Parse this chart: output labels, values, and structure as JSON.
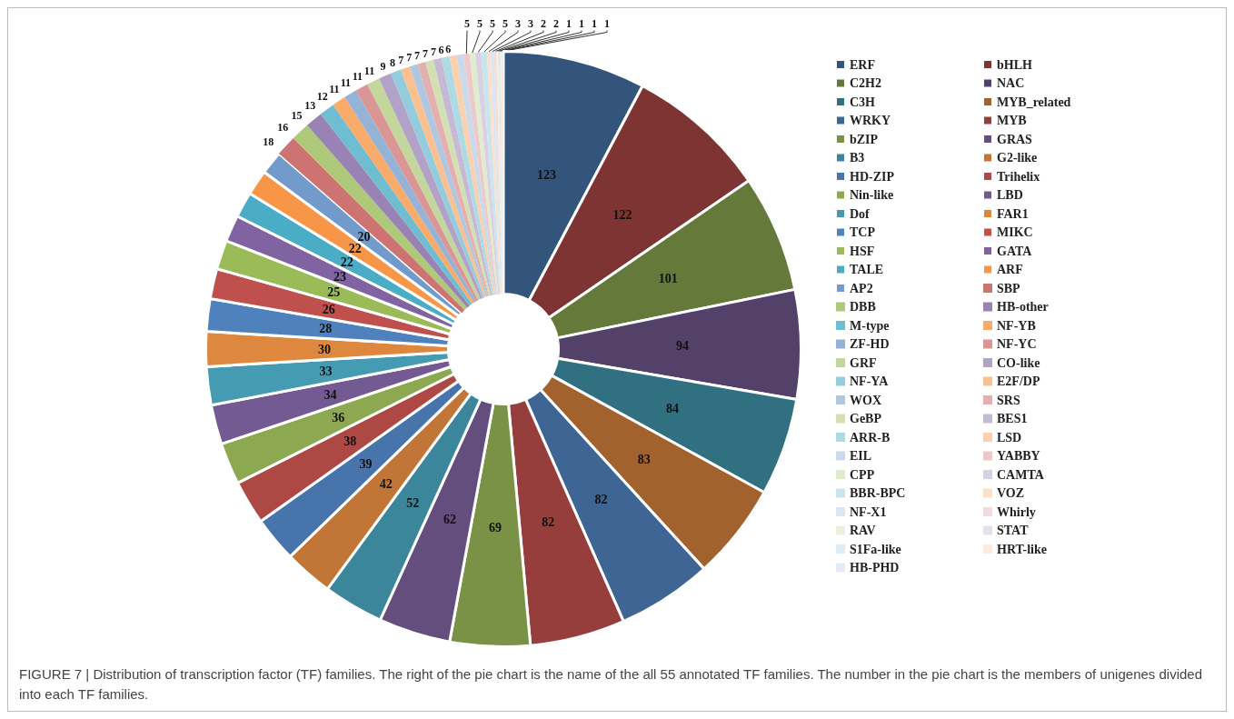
{
  "chart_data": {
    "type": "donut",
    "categories": [
      "ERF",
      "bHLH",
      "C2H2",
      "NAC",
      "C3H",
      "MYB_related",
      "WRKY",
      "MYB",
      "bZIP",
      "GRAS",
      "B3",
      "G2-like",
      "HD-ZIP",
      "Trihelix",
      "Nin-like",
      "LBD",
      "Dof",
      "FAR1",
      "TCP",
      "MIKC",
      "HSF",
      "GATA",
      "TALE",
      "ARF",
      "AP2",
      "SBP",
      "DBB",
      "HB-other",
      "M-type",
      "NF-YB",
      "ZF-HD",
      "NF-YC",
      "GRF",
      "CO-like",
      "NF-YA",
      "E2F/DP",
      "WOX",
      "SRS",
      "GeBP",
      "BES1",
      "ARR-B",
      "LSD",
      "EIL",
      "YABBY",
      "CPP",
      "CAMTA",
      "BBR-BPC",
      "VOZ",
      "NF-X1",
      "Whirly",
      "RAV",
      "STAT",
      "S1Fa-like",
      "HRT-like",
      "HB-PHD"
    ],
    "values": [
      123,
      122,
      101,
      94,
      84,
      83,
      82,
      82,
      69,
      62,
      52,
      42,
      39,
      38,
      36,
      34,
      33,
      30,
      28,
      26,
      25,
      23,
      22,
      22,
      20,
      18,
      16,
      15,
      13,
      12,
      11,
      11,
      11,
      11,
      9,
      8,
      7,
      7,
      7,
      7,
      7,
      6,
      6,
      5,
      5,
      5,
      5,
      3,
      3,
      2,
      2,
      1,
      1,
      1,
      1
    ],
    "colors": [
      "#33547b",
      "#7d3432",
      "#657a3a",
      "#534169",
      "#317081",
      "#a1622e",
      "#3e6593",
      "#963e3c",
      "#799245",
      "#644e7e",
      "#3b869a",
      "#c17537",
      "#4774aa",
      "#ad4845",
      "#8ca850",
      "#735a92",
      "#449bb2",
      "#de873f",
      "#4f81bd",
      "#c0504d",
      "#9bbb59",
      "#8064a2",
      "#4bacc6",
      "#f79646",
      "#729aca",
      "#cd7371",
      "#afc97a",
      "#9983b5",
      "#6fbdd1",
      "#f9ab6b",
      "#95b3d7",
      "#d99694",
      "#c3d69b",
      "#b3a2c7",
      "#93cddd",
      "#fac090",
      "#b0c7e2",
      "#e3b0af",
      "#d2e0b4",
      "#c6b9d5",
      "#aedae5",
      "#fbd0ac",
      "#cad9eb",
      "#eccaca",
      "#e1ebcd",
      "#d9d1e3",
      "#c9e6ee",
      "#fce0c8",
      "#dce6f2",
      "#f2dcdb",
      "#ebf1de",
      "#e6e0ec",
      "#dbeef4",
      "#fdeada",
      "#e5ecf5"
    ],
    "data_labels": true,
    "legend": "right",
    "annotations": [
      "FIGURE 7 | Distribution of transcription factor (TF) families. The right of the pie chart is the name of the all 55 annotated TF families. The number in the pie chart is the members of unigenes divided into each TF families."
    ]
  }
}
